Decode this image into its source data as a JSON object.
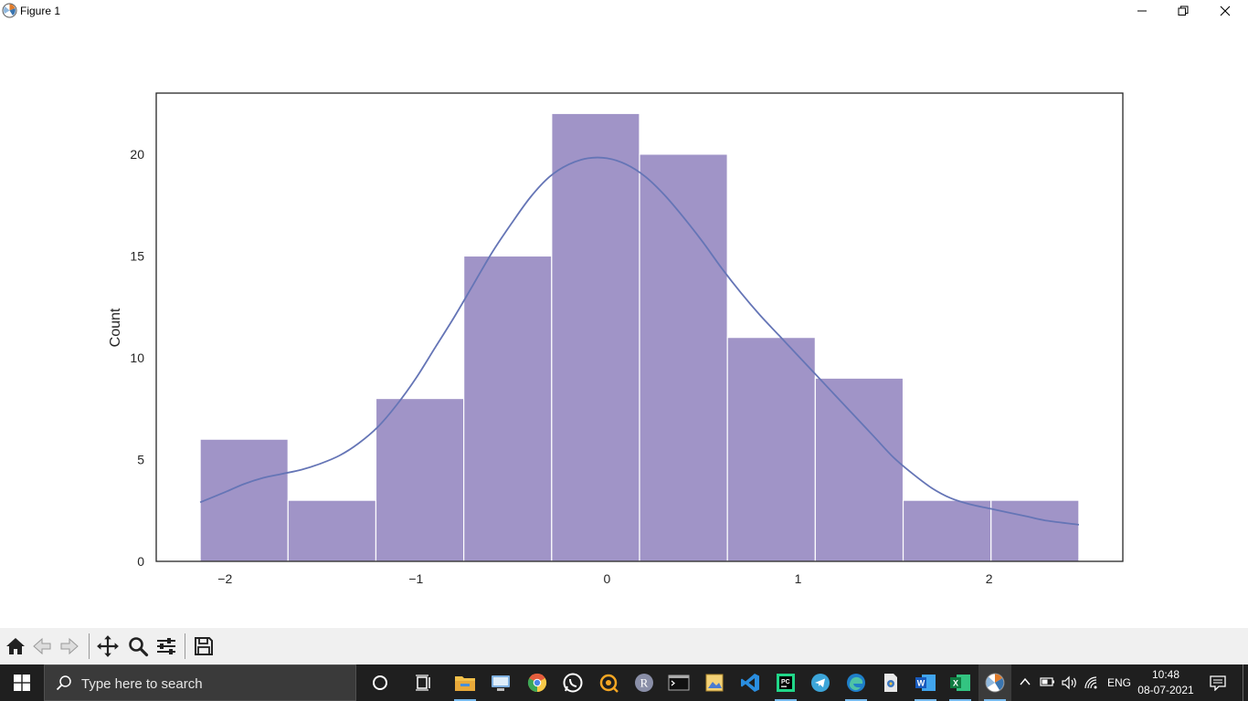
{
  "window": {
    "title": "Figure 1"
  },
  "chart_data": {
    "type": "bar",
    "bar_color": "#a094c7",
    "kde_color": "#6575b6",
    "ylabel": "Count",
    "xlabel": "",
    "xlim": [
      -2.36,
      2.7
    ],
    "ylim": [
      0,
      23
    ],
    "xticks": [
      -2,
      -1,
      0,
      1,
      2
    ],
    "xtick_labels": [
      "−2",
      "−1",
      "0",
      "1",
      "2"
    ],
    "yticks": [
      0,
      5,
      10,
      15,
      20
    ],
    "ytick_labels": [
      "0",
      "5",
      "10",
      "15",
      "20"
    ],
    "bin_edges": [
      -2.13,
      -1.67,
      -1.21,
      -0.75,
      -0.29,
      0.17,
      0.63,
      1.09,
      1.55,
      2.01,
      2.47
    ],
    "values": [
      6,
      3,
      8,
      15,
      22,
      20,
      11,
      9,
      3,
      3
    ],
    "kde": {
      "x": [
        -2.13,
        -2.0,
        -1.9,
        -1.8,
        -1.7,
        -1.6,
        -1.5,
        -1.4,
        -1.3,
        -1.2,
        -1.1,
        -1.0,
        -0.9,
        -0.8,
        -0.7,
        -0.6,
        -0.5,
        -0.4,
        -0.3,
        -0.2,
        -0.1,
        0.0,
        0.1,
        0.2,
        0.3,
        0.4,
        0.5,
        0.6,
        0.7,
        0.8,
        0.9,
        1.0,
        1.1,
        1.2,
        1.3,
        1.4,
        1.5,
        1.6,
        1.7,
        1.8,
        1.9,
        2.0,
        2.1,
        2.2,
        2.3,
        2.47
      ],
      "y": [
        2.9,
        3.4,
        3.8,
        4.1,
        4.3,
        4.5,
        4.8,
        5.2,
        5.8,
        6.6,
        7.7,
        9.0,
        10.5,
        12.0,
        13.6,
        15.2,
        16.6,
        17.9,
        18.9,
        19.5,
        19.8,
        19.8,
        19.5,
        18.9,
        18.0,
        16.9,
        15.7,
        14.4,
        13.2,
        12.1,
        11.1,
        10.1,
        9.1,
        8.1,
        7.1,
        6.1,
        5.1,
        4.3,
        3.6,
        3.1,
        2.8,
        2.6,
        2.4,
        2.2,
        2.0,
        1.8
      ]
    }
  },
  "toolbar": {
    "buttons": [
      "home-icon",
      "back-icon",
      "forward-icon",
      "pan-icon",
      "zoom-icon",
      "configure-subplots-icon",
      "save-icon"
    ]
  },
  "taskbar": {
    "search_placeholder": "Type here to search",
    "apps": [
      "cortana-icon",
      "task-view-icon",
      "file-explorer-icon",
      "network-app-icon",
      "chrome-icon",
      "whatsapp-icon",
      "orange-app-icon",
      "r-icon",
      "terminal-icon",
      "image-editor-icon",
      "vscode-icon",
      "pycharm-icon",
      "telegram-icon",
      "edge-icon",
      "document-app-icon",
      "word-icon",
      "excel-icon",
      "matplotlib-icon"
    ],
    "tray": {
      "language": "ENG",
      "time": "10:48",
      "date": "08-07-2021"
    }
  }
}
